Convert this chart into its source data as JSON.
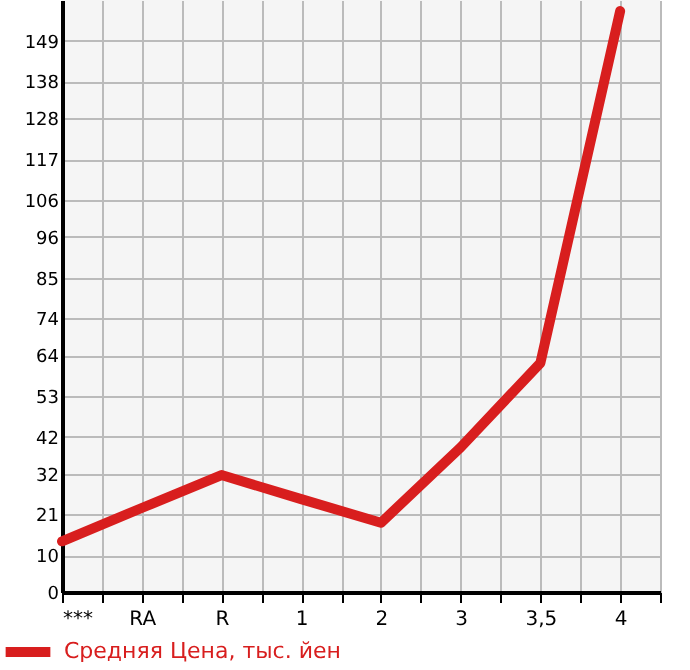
{
  "chart_data": {
    "type": "line",
    "categories": [
      "***",
      "RA",
      "R",
      "1",
      "2",
      "3",
      "3,5",
      "4"
    ],
    "series": [
      {
        "name": "Средняя Цена, тыс. йен",
        "color": "#d81e1e",
        "values": [
          13.7,
          22.7,
          31.6,
          25.1,
          18.7,
          39.1,
          61.9,
          157
        ]
      }
    ],
    "ylim": [
      0,
      160
    ],
    "yticks": [
      0,
      10,
      21,
      32,
      42,
      53,
      64,
      74,
      85,
      96,
      106,
      117,
      128,
      138,
      149
    ],
    "grid": true,
    "legend": "bottom left",
    "marker": "none",
    "line_style": "solid"
  }
}
